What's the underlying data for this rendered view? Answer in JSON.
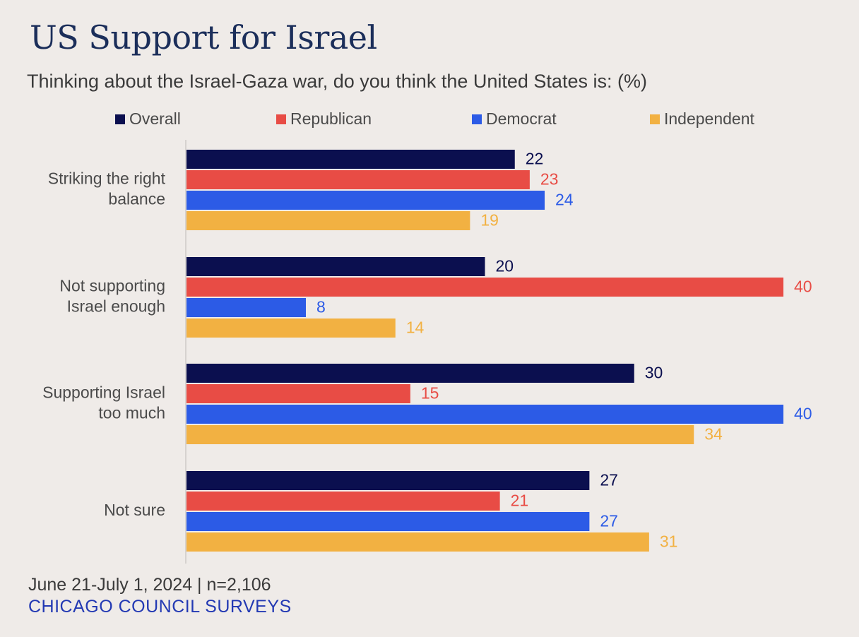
{
  "title": "US Support for Israel",
  "subtitle": "Thinking about the Israel-Gaza war, do you think the United States is: (%)",
  "footer": {
    "date": "June 21-July 1, 2024 | n=2,106",
    "source": "CHICAGO COUNCIL SURVEYS"
  },
  "chart_data": {
    "type": "bar",
    "orientation": "horizontal",
    "categories": [
      [
        "Striking the right",
        "balance"
      ],
      [
        "Not supporting",
        "Israel enough"
      ],
      [
        "Supporting Israel",
        "too much"
      ],
      [
        "Not sure"
      ]
    ],
    "series": [
      {
        "name": "Overall",
        "color": "#0b0f4f",
        "values": [
          22,
          20,
          30,
          27
        ]
      },
      {
        "name": "Republican",
        "color": "#e84c45",
        "values": [
          23,
          40,
          15,
          21
        ]
      },
      {
        "name": "Democrat",
        "color": "#2c5be6",
        "values": [
          24,
          8,
          40,
          27
        ]
      },
      {
        "name": "Independent",
        "color": "#f2b142",
        "values": [
          19,
          14,
          34,
          31
        ]
      }
    ],
    "xlim": [
      0,
      40
    ],
    "legend_position": "top",
    "grid": false,
    "data_labels": true
  }
}
